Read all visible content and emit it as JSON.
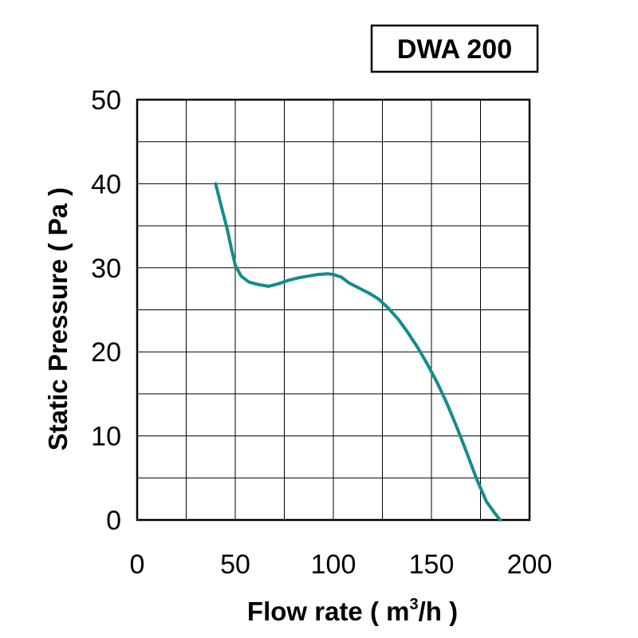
{
  "chart_data": {
    "type": "line",
    "title": "DWA 200",
    "xlabel": "Flow rate ( m",
    "xlabel_sup": "3",
    "xlabel_tail": "/h )",
    "ylabel": "Static Pressure ( Pa )",
    "xlim": [
      0,
      200
    ],
    "ylim": [
      0,
      50
    ],
    "x_ticks": [
      "0",
      "50",
      "100",
      "150",
      "200"
    ],
    "y_ticks": [
      "0",
      "10",
      "20",
      "30",
      "40",
      "50"
    ],
    "grid": true,
    "series": [
      {
        "color": "#138c8c",
        "x": [
          40,
          43,
          46,
          48,
          50,
          53,
          57,
          62,
          67,
          72,
          77,
          82,
          87,
          92,
          97,
          100,
          104,
          108,
          113,
          118,
          123,
          128,
          133,
          138,
          143,
          148,
          153,
          158,
          163,
          168,
          173,
          178,
          182,
          185
        ],
        "y": [
          40,
          37.2,
          34.5,
          32.3,
          30.3,
          29.0,
          28.3,
          28.0,
          27.8,
          28.1,
          28.5,
          28.8,
          29.0,
          29.2,
          29.3,
          29.2,
          28.9,
          28.2,
          27.6,
          27.0,
          26.3,
          25.2,
          23.9,
          22.3,
          20.5,
          18.5,
          16.3,
          13.8,
          11.0,
          8.0,
          4.9,
          2.2,
          0.9,
          0
        ]
      }
    ]
  }
}
